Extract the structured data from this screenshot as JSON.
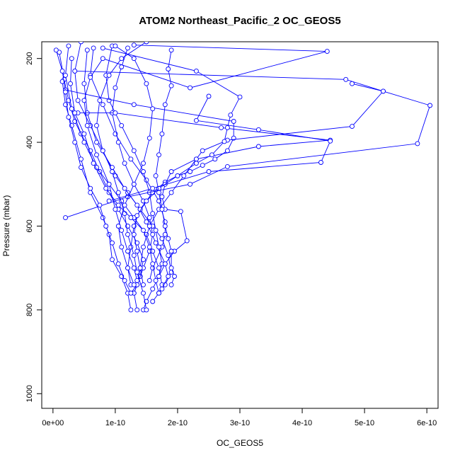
{
  "chart_data": {
    "type": "line",
    "title": "ATOM2 Northeast_Pacific_2 OC_GEOS5",
    "xlabel": "OC_GEOS5",
    "ylabel": "Pressure (mbar)",
    "xlim": [
      -1.8e-11,
      6.18e-10
    ],
    "ylim": [
      1035,
      160
    ],
    "y_reversed": true,
    "x_ticks": [
      {
        "value": 0,
        "label": "0e+00"
      },
      {
        "value": 1e-10,
        "label": "1e-10"
      },
      {
        "value": 2e-10,
        "label": "2e-10"
      },
      {
        "value": 3e-10,
        "label": "3e-10"
      },
      {
        "value": 4e-10,
        "label": "4e-10"
      },
      {
        "value": 5e-10,
        "label": "5e-10"
      },
      {
        "value": 6e-10,
        "label": "6e-10"
      }
    ],
    "y_ticks": [
      {
        "value": 200,
        "label": "200"
      },
      {
        "value": 400,
        "label": "400"
      },
      {
        "value": 600,
        "label": "600"
      },
      {
        "value": 800,
        "label": "800"
      },
      {
        "value": 1000,
        "label": "1000"
      }
    ],
    "series_color": "#0000ff",
    "marker": "open-circle",
    "grid": false,
    "series": [
      {
        "points": [
          [
            1e-11,
            185
          ],
          [
            1.8e-11,
            250
          ],
          [
            2.5e-11,
            300
          ],
          [
            3.5e-11,
            350
          ],
          [
            4.5e-11,
            380
          ],
          [
            6e-11,
            420
          ],
          [
            7.5e-11,
            470
          ],
          [
            9e-11,
            520
          ],
          [
            1.05e-10,
            560
          ],
          [
            1.2e-10,
            600
          ],
          [
            1.35e-10,
            640
          ],
          [
            1.45e-10,
            680
          ],
          [
            1.4e-10,
            720
          ],
          [
            1.3e-10,
            760
          ],
          [
            1.35e-10,
            800
          ]
        ]
      },
      {
        "points": [
          [
            2.5e-11,
            170
          ],
          [
            2e-11,
            240
          ],
          [
            3e-11,
            320
          ],
          [
            5e-11,
            400
          ],
          [
            7e-11,
            460
          ],
          [
            9e-11,
            500
          ],
          [
            1.1e-10,
            540
          ],
          [
            1.3e-10,
            580
          ],
          [
            1.5e-10,
            620
          ],
          [
            1.6e-10,
            660
          ],
          [
            1.7e-10,
            700
          ],
          [
            1.75e-10,
            740
          ],
          [
            1.7e-10,
            760
          ],
          [
            1.6e-10,
            780
          ]
        ]
      },
      {
        "points": [
          [
            4.5e-11,
            160
          ],
          [
            3.5e-11,
            230
          ],
          [
            4e-11,
            300
          ],
          [
            6e-11,
            360
          ],
          [
            8e-11,
            420
          ],
          [
            1e-10,
            480
          ],
          [
            1.2e-10,
            520
          ],
          [
            1.4e-10,
            560
          ],
          [
            1.6e-10,
            600
          ],
          [
            1.75e-10,
            630
          ],
          [
            1.85e-10,
            670
          ],
          [
            1.9e-10,
            710
          ],
          [
            1.8e-10,
            740
          ],
          [
            1.7e-10,
            760
          ]
        ]
      },
      {
        "points": [
          [
            5.5e-11,
            180
          ],
          [
            5e-11,
            260
          ],
          [
            5.5e-11,
            330
          ],
          [
            7e-11,
            400
          ],
          [
            9.5e-11,
            460
          ],
          [
            1.15e-10,
            510
          ],
          [
            1.35e-10,
            550
          ],
          [
            1.5e-10,
            590
          ],
          [
            1.65e-10,
            640
          ],
          [
            1.8e-10,
            690
          ],
          [
            1.85e-10,
            720
          ],
          [
            1.75e-10,
            750
          ]
        ]
      },
      {
        "points": [
          [
            6.5e-11,
            175
          ],
          [
            6e-11,
            240
          ],
          [
            8e-11,
            310
          ],
          [
            1e-10,
            380
          ],
          [
            1.25e-10,
            440
          ],
          [
            1.5e-10,
            490
          ],
          [
            1.7e-10,
            540
          ],
          [
            1.8e-10,
            590
          ],
          [
            1.8e-10,
            620
          ],
          [
            1.75e-10,
            650
          ],
          [
            1.6e-10,
            700
          ],
          [
            1.55e-10,
            730
          ]
        ]
      },
      {
        "points": [
          [
            1.5e-11,
            255
          ],
          [
            2e-11,
            310
          ],
          [
            3e-11,
            360
          ],
          [
            4.5e-11,
            440
          ],
          [
            6e-11,
            520
          ],
          [
            8e-11,
            580
          ],
          [
            9e-11,
            620
          ],
          [
            9.5e-11,
            680
          ],
          [
            1.1e-10,
            720
          ],
          [
            1.2e-10,
            760
          ],
          [
            1.25e-10,
            800
          ]
        ]
      },
      {
        "points": [
          [
            9.5e-11,
            170
          ],
          [
            8.5e-11,
            240
          ],
          [
            9e-11,
            300
          ],
          [
            1.1e-10,
            360
          ],
          [
            1.3e-10,
            420
          ],
          [
            1.45e-10,
            470
          ],
          [
            1.55e-10,
            520
          ],
          [
            1.6e-10,
            570
          ],
          [
            1.65e-10,
            610
          ],
          [
            1.7e-10,
            650
          ],
          [
            1.75e-10,
            690
          ],
          [
            1.7e-10,
            720
          ],
          [
            1.6e-10,
            750
          ],
          [
            1.5e-10,
            780
          ],
          [
            1.45e-10,
            800
          ]
        ]
      },
      {
        "points": [
          [
            1.2e-10,
            175
          ],
          [
            1.1e-10,
            220
          ],
          [
            1e-10,
            270
          ],
          [
            9.5e-11,
            330
          ],
          [
            1.05e-10,
            400
          ],
          [
            1.15e-10,
            450
          ],
          [
            1.3e-10,
            500
          ],
          [
            1.45e-10,
            540
          ],
          [
            1.55e-10,
            580
          ],
          [
            1.6e-10,
            620
          ],
          [
            1.55e-10,
            660
          ],
          [
            1.45e-10,
            700
          ],
          [
            1.35e-10,
            740
          ],
          [
            1.25e-10,
            760
          ]
        ]
      },
      {
        "points": [
          [
            2e-11,
            275
          ],
          [
            1.3e-10,
            310
          ],
          [
            2.9e-10,
            350
          ],
          [
            2.9e-10,
            390
          ],
          [
            2.8e-10,
            420
          ],
          [
            2.6e-10,
            440
          ],
          [
            2.4e-10,
            455
          ],
          [
            2.2e-10,
            470
          ],
          [
            2e-10,
            480
          ],
          [
            1.8e-10,
            495
          ],
          [
            1.6e-10,
            520
          ],
          [
            1.4e-10,
            560
          ],
          [
            1.3e-10,
            600
          ],
          [
            1.25e-10,
            650
          ],
          [
            1.2e-10,
            700
          ],
          [
            1.25e-10,
            740
          ]
        ]
      },
      {
        "points": [
          [
            4e-11,
            330
          ],
          [
            1e-10,
            330
          ],
          [
            2.7e-10,
            365
          ],
          [
            4.45e-10,
            395
          ],
          [
            3.3e-10,
            410
          ],
          [
            2.3e-10,
            440
          ],
          [
            1.9e-10,
            470
          ],
          [
            1.8e-10,
            500
          ],
          [
            1.75e-10,
            530
          ],
          [
            1.8e-10,
            560
          ],
          [
            2.05e-10,
            565
          ],
          [
            2.15e-10,
            635
          ],
          [
            1.95e-10,
            660
          ],
          [
            1.8e-10,
            690
          ],
          [
            1.7e-10,
            720
          ]
        ]
      },
      {
        "points": [
          [
            3.5e-11,
            230
          ],
          [
            4.7e-10,
            250
          ],
          [
            5.3e-10,
            278
          ],
          [
            4.8e-10,
            362
          ],
          [
            2.8e-10,
            395
          ],
          [
            2.4e-10,
            420
          ],
          [
            2.3e-10,
            440
          ],
          [
            2.1e-10,
            480
          ],
          [
            1.9e-10,
            520
          ],
          [
            1.7e-10,
            560
          ],
          [
            1.55e-10,
            600
          ],
          [
            1.45e-10,
            650
          ],
          [
            1.4e-10,
            700
          ],
          [
            1.35e-10,
            740
          ],
          [
            1.3e-10,
            760
          ]
        ]
      },
      {
        "points": [
          [
            8e-11,
            175
          ],
          [
            2.3e-10,
            230
          ],
          [
            3e-10,
            292
          ],
          [
            2.85e-10,
            335
          ],
          [
            2.8e-10,
            365
          ],
          [
            2.75e-10,
            398
          ],
          [
            2.55e-10,
            430
          ],
          [
            2.3e-10,
            450
          ],
          [
            2e-10,
            480
          ],
          [
            1.7e-10,
            510
          ],
          [
            1.5e-10,
            540
          ],
          [
            1.35e-10,
            575
          ],
          [
            1.3e-10,
            620
          ],
          [
            1.35e-10,
            660
          ],
          [
            1.4e-10,
            700
          ],
          [
            1.45e-10,
            740
          ]
        ]
      },
      {
        "points": [
          [
            1.3e-10,
            168
          ],
          [
            4.4e-10,
            183
          ],
          [
            2.2e-10,
            270
          ],
          [
            8e-11,
            200
          ],
          [
            6e-11,
            245
          ],
          [
            5e-11,
            300
          ],
          [
            5.5e-11,
            360
          ],
          [
            7e-11,
            430
          ],
          [
            9e-11,
            500
          ],
          [
            1e-10,
            560
          ],
          [
            1.1e-10,
            610
          ],
          [
            1.2e-10,
            660
          ],
          [
            1.3e-10,
            700
          ],
          [
            1.35e-10,
            730
          ]
        ]
      },
      {
        "points": [
          [
            1.9e-10,
            180
          ],
          [
            1.85e-10,
            225
          ],
          [
            1.9e-10,
            265
          ],
          [
            1.8e-10,
            310
          ],
          [
            1.75e-10,
            380
          ],
          [
            1.7e-10,
            430
          ],
          [
            1.65e-10,
            480
          ],
          [
            1.7e-10,
            520
          ],
          [
            1.75e-10,
            560
          ],
          [
            1.8e-10,
            600
          ],
          [
            1.85e-10,
            630
          ],
          [
            1.9e-10,
            660
          ],
          [
            1.9e-10,
            700
          ],
          [
            1.95e-10,
            720
          ],
          [
            1.9e-10,
            740
          ]
        ]
      },
      {
        "points": [
          [
            2e-11,
            580
          ],
          [
            1.2e-10,
            530
          ],
          [
            2.2e-10,
            500
          ],
          [
            2.8e-10,
            458
          ],
          [
            5.85e-10,
            403
          ],
          [
            6.05e-10,
            312
          ],
          [
            5.3e-10,
            278
          ],
          [
            4.8e-10,
            260
          ]
        ]
      },
      {
        "points": [
          [
            9e-11,
            540
          ],
          [
            1.6e-10,
            510
          ],
          [
            2.5e-10,
            470
          ],
          [
            4.3e-10,
            448
          ],
          [
            4.45e-10,
            397
          ],
          [
            3.3e-10,
            370
          ],
          [
            2.3e-10,
            348
          ],
          [
            2.5e-10,
            290
          ]
        ]
      },
      {
        "points": [
          [
            1.5e-10,
            160
          ],
          [
            1.1e-10,
            200
          ],
          [
            9e-11,
            240
          ],
          [
            7.5e-11,
            300
          ],
          [
            7e-11,
            360
          ],
          [
            8e-11,
            420
          ],
          [
            9.5e-11,
            470
          ],
          [
            1.05e-10,
            520
          ],
          [
            1.15e-10,
            570
          ],
          [
            1.2e-10,
            620
          ],
          [
            1.3e-10,
            670
          ],
          [
            1.35e-10,
            710
          ],
          [
            1.45e-10,
            760
          ],
          [
            1.5e-10,
            800
          ]
        ]
      },
      {
        "points": [
          [
            5e-12,
            180
          ],
          [
            1.5e-11,
            230
          ],
          [
            2e-11,
            280
          ],
          [
            2.5e-11,
            340
          ],
          [
            3.5e-11,
            400
          ],
          [
            4.5e-11,
            460
          ],
          [
            6e-11,
            510
          ],
          [
            7.5e-11,
            550
          ],
          [
            8.5e-11,
            600
          ],
          [
            9.5e-11,
            640
          ],
          [
            1.05e-10,
            690
          ],
          [
            1.15e-10,
            730
          ],
          [
            1.25e-10,
            760
          ]
        ]
      },
      {
        "points": [
          [
            1e-10,
            170
          ],
          [
            1.3e-10,
            200
          ],
          [
            1.5e-10,
            260
          ],
          [
            1.6e-10,
            320
          ],
          [
            1.55e-10,
            390
          ],
          [
            1.45e-10,
            450
          ],
          [
            1.3e-10,
            500
          ],
          [
            1.15e-10,
            550
          ],
          [
            1.05e-10,
            600
          ],
          [
            1.1e-10,
            650
          ],
          [
            1.2e-10,
            700
          ],
          [
            1.3e-10,
            740
          ]
        ]
      },
      {
        "points": [
          [
            3e-11,
            200
          ],
          [
            2.8e-11,
            260
          ],
          [
            3.5e-11,
            330
          ],
          [
            5e-11,
            380
          ],
          [
            6.5e-11,
            450
          ],
          [
            8.5e-11,
            510
          ],
          [
            1.05e-10,
            550
          ],
          [
            1.25e-10,
            580
          ],
          [
            1.45e-10,
            610
          ],
          [
            1.55e-10,
            650
          ],
          [
            1.6e-10,
            690
          ],
          [
            1.65e-10,
            730
          ],
          [
            1.7e-10,
            760
          ]
        ]
      }
    ]
  }
}
